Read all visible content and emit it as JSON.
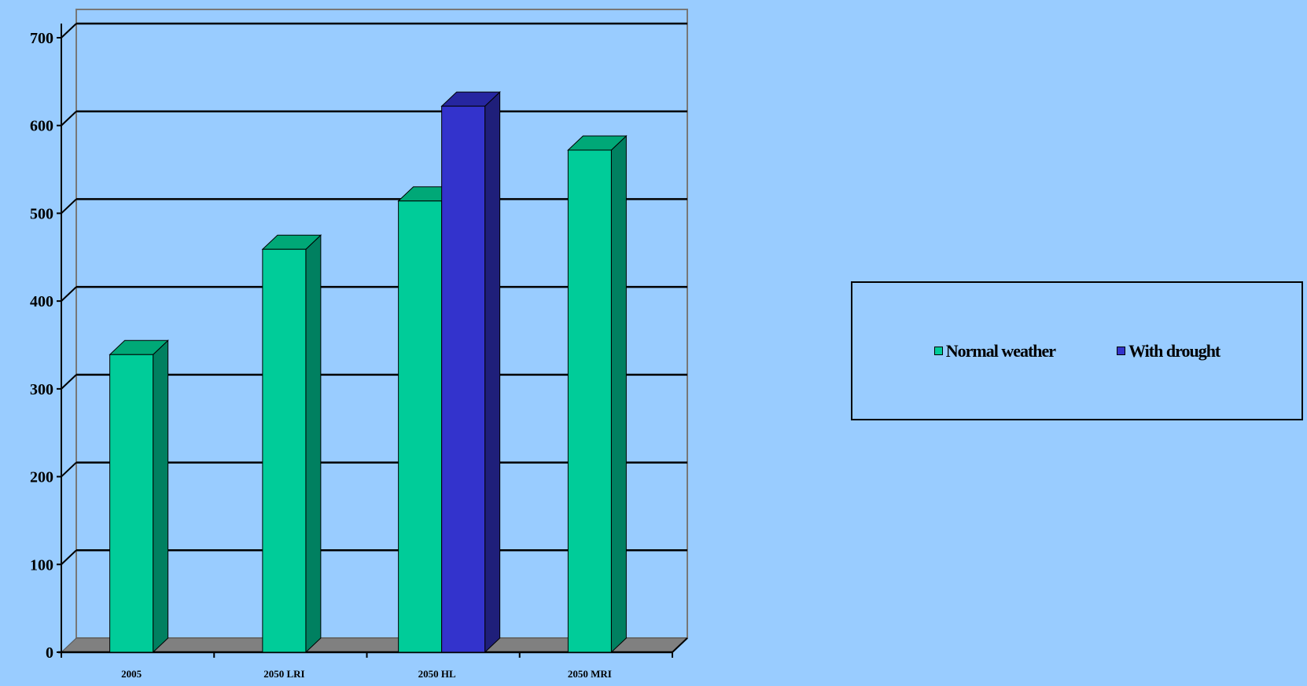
{
  "chart_data": {
    "type": "bar",
    "categories": [
      "2005",
      "2050 LRI",
      "2050 HL",
      "2050 MRI"
    ],
    "series": [
      {
        "name": "Normal weather",
        "values": [
          339,
          459,
          514,
          572
        ],
        "color": "#00cc99",
        "side_color": "#008060",
        "top_color": "#00a877"
      },
      {
        "name": "With drought",
        "values": [
          null,
          null,
          622,
          null
        ],
        "color": "#3333cc",
        "side_color": "#1f1f7a",
        "top_color": "#2626a0"
      }
    ],
    "yticks": [
      "0",
      "100",
      "200",
      "300",
      "400",
      "500",
      "600",
      "700"
    ],
    "ylim": [
      0,
      700
    ],
    "title": "",
    "xlabel": "",
    "ylabel": "",
    "grid": true,
    "legend_position": "right",
    "three_d": true,
    "colors": {
      "background": "#99ccff",
      "floor": "#808080",
      "gridline": "#000000"
    }
  },
  "legend": {
    "items": [
      {
        "label": "Normal weather",
        "color": "#00cc99"
      },
      {
        "label": "With drought",
        "color": "#3333cc"
      }
    ]
  }
}
